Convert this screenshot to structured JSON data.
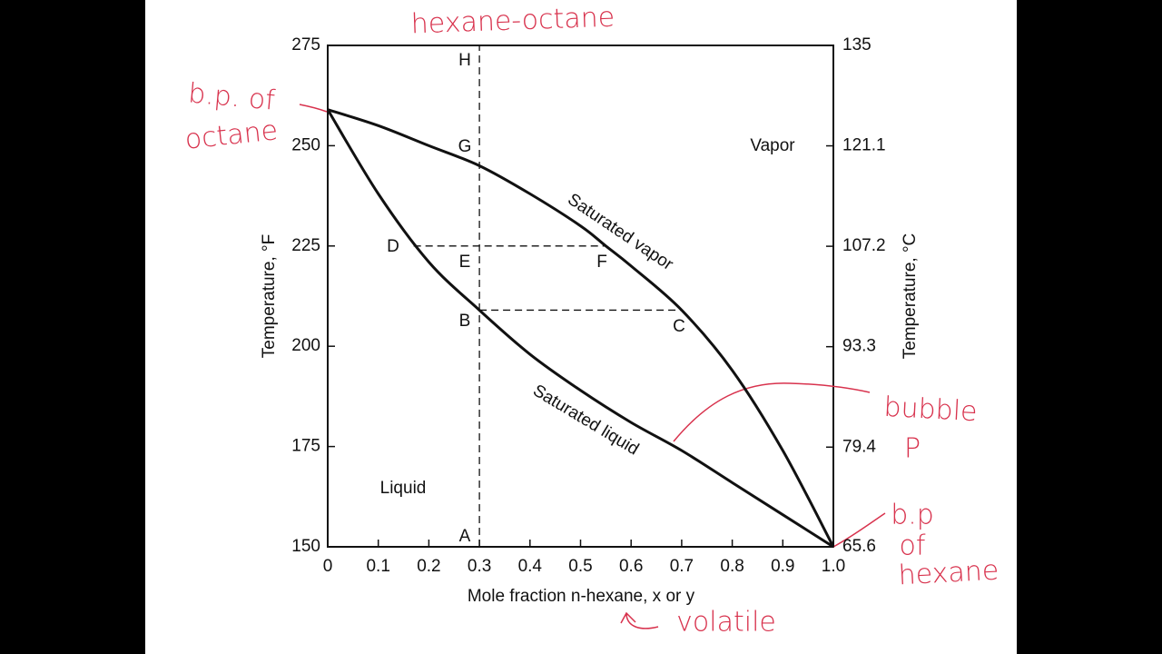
{
  "chart_data": {
    "type": "line",
    "x_label": "Mole fraction n-hexane, x or y",
    "y_label": "Temperature, °F",
    "y2_label": "Temperature, °C",
    "xlim": [
      0,
      1
    ],
    "xticks": [
      0,
      0.1,
      0.2,
      0.3,
      0.4,
      0.5,
      0.6,
      0.7,
      0.8,
      0.9,
      {
        "value": 1,
        "label": "1.0"
      }
    ],
    "ylim": [
      150,
      275
    ],
    "yticks": [
      150,
      175,
      200,
      225,
      250,
      275
    ],
    "y2lim": [
      65.6,
      135
    ],
    "y2ticks": [
      65.6,
      79.4,
      93.3,
      107.2,
      121.1,
      135
    ],
    "series": [
      {
        "name": "Saturated liquid",
        "color": "#111111",
        "x": [
          0,
          0.1,
          0.2,
          0.3,
          0.4,
          0.5,
          0.6,
          0.7,
          0.8,
          0.9,
          1
        ],
        "values": [
          259,
          238,
          221,
          209,
          198,
          189,
          181,
          174,
          166,
          158,
          150
        ]
      },
      {
        "name": "Saturated vapor",
        "color": "#111111",
        "x": [
          0,
          0.1,
          0.2,
          0.3,
          0.4,
          0.5,
          0.55,
          0.6,
          0.7,
          0.8,
          0.9,
          1
        ],
        "values": [
          259,
          255,
          250,
          245,
          238,
          230,
          225,
          220,
          209,
          194,
          174,
          150
        ]
      }
    ],
    "reference_lines": [
      {
        "x": [
          0.3,
          0.3
        ],
        "y": [
          150,
          275
        ]
      },
      {
        "x": [
          0.17,
          0.55
        ],
        "y": [
          225,
          225
        ]
      },
      {
        "x": [
          0.3,
          0.7
        ],
        "y": [
          209,
          209
        ]
      }
    ],
    "region_labels": [
      "Vapor",
      "Liquid"
    ],
    "point_labels": [
      "H",
      "G",
      "D",
      "E",
      "F",
      "B",
      "C",
      "A"
    ],
    "handwritten_notes": [
      "hexane-octane",
      "b.p. of",
      "octane",
      "bubble",
      "P",
      "b.p",
      "of",
      "hexane",
      "volatile"
    ]
  }
}
